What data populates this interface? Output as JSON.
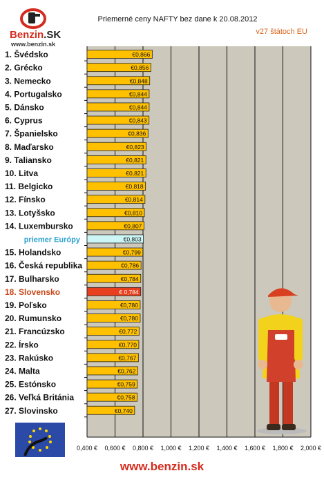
{
  "header": {
    "title": "Priemerné ceny NAFTY bez dane k 20.08.2012",
    "subtitle": "v27 štátoch EU"
  },
  "logo": {
    "word_main": "Benzin",
    "word_suffix": ".SK",
    "url": "www.benzin.sk"
  },
  "footer": {
    "url": "www.benzin.sk"
  },
  "colors": {
    "bar": "#ffc000",
    "bar_highlight": "#e8401e",
    "bar_average": "#ccf5f5",
    "plot_bg": "#ccc8bc",
    "label_highlight": "#c8481a",
    "label_average": "#2aa0d0"
  },
  "chart_data": {
    "type": "bar",
    "orientation": "horizontal",
    "title": "Priemerné ceny NAFTY bez dane k 20.08.2012",
    "subtitle": "v27 štátoch EU",
    "xlim": [
      0.4,
      2.0
    ],
    "x_ticks": [
      "0,400 €",
      "0,600 €",
      "0,800 €",
      "1,000 €",
      "1,200 €",
      "1,400 €",
      "1,600 €",
      "1,800 €",
      "2,000 €"
    ],
    "grid": true,
    "categories": [
      "1. Švédsko",
      "2. Grécko",
      "3. Nemecko",
      "4. Portugalsko",
      "5. Dánsko",
      "6. Cyprus",
      "7. Španielsko",
      "8. Maďarsko",
      "9. Taliansko",
      "10. Litva",
      "11. Belgicko",
      "12. Fínsko",
      "13. Lotyšsko",
      "14. Luxembursko",
      "priemer Európy",
      "15. Holandsko",
      "16. Česká republika",
      "17. Bulharsko",
      "18. Slovensko",
      "19. Poľsko",
      "20. Rumunsko",
      "21. Francúzsko",
      "22. Írsko",
      "23. Rakúsko",
      "24. Malta",
      "25. Estónsko",
      "26. Veľká Británia",
      "27. Slovinsko"
    ],
    "values": [
      0.866,
      0.856,
      0.848,
      0.844,
      0.844,
      0.843,
      0.836,
      0.823,
      0.821,
      0.821,
      0.818,
      0.814,
      0.81,
      0.807,
      0.803,
      0.799,
      0.786,
      0.784,
      0.784,
      0.78,
      0.78,
      0.772,
      0.77,
      0.767,
      0.762,
      0.759,
      0.758,
      0.74
    ],
    "value_labels": [
      "€0,866",
      "€0,856",
      "€0,848",
      "€0,844",
      "€0,844",
      "€0,843",
      "€0,836",
      "€0,823",
      "€0,821",
      "€0,821",
      "€0,818",
      "€0,814",
      "€0,810",
      "€0,807",
      "€0,803",
      "€0,799",
      "€0,786",
      "€0,784",
      "€ 0,784",
      "€0,780",
      "€0,780",
      "€0,772",
      "€0,770",
      "€0,767",
      "€0,762",
      "€0,759",
      "€0,758",
      "€0,740"
    ],
    "highlight_index": 18,
    "average_index": 14
  }
}
